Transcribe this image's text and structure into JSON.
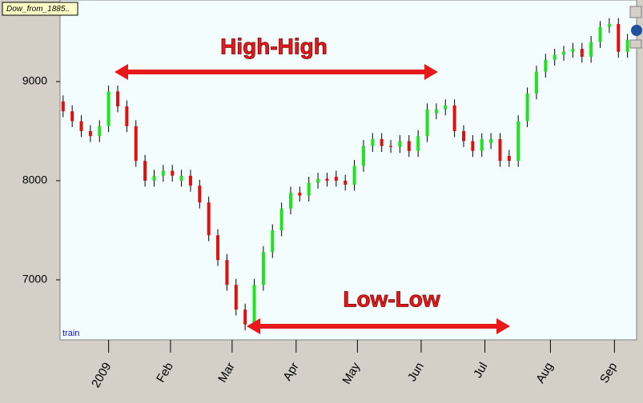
{
  "chart_data": {
    "type": "candlestick",
    "title": "Dow_from_1885..",
    "annotations": [
      "High-High",
      "Low-Low",
      "train"
    ],
    "x": [
      1,
      4,
      7,
      10,
      13,
      16,
      19,
      22,
      25,
      28,
      31,
      34,
      37,
      40,
      43,
      46,
      49,
      52,
      55,
      58,
      61,
      64,
      67,
      70,
      73,
      76,
      79,
      82,
      85,
      88,
      91,
      94,
      97,
      100,
      103,
      106,
      109,
      112,
      115,
      118,
      121,
      124,
      127,
      130,
      133,
      136,
      139,
      142,
      145,
      148,
      151,
      154,
      157,
      160,
      163,
      166,
      169,
      172,
      175,
      178,
      181,
      184,
      187
    ],
    "open": [
      8800,
      8700,
      8600,
      8500,
      8450,
      8550,
      8900,
      8750,
      8550,
      8200,
      8000,
      8050,
      8100,
      8000,
      8050,
      7950,
      7780,
      7450,
      7200,
      6950,
      6700,
      6550,
      6950,
      7280,
      7500,
      7720,
      7880,
      7850,
      7980,
      8020,
      8040,
      8000,
      7960,
      8150,
      8350,
      8420,
      8350,
      8340,
      8400,
      8300,
      8450,
      8680,
      8720,
      8760,
      8500,
      8400,
      8300,
      8380,
      8420,
      8250,
      8200,
      8600,
      8880,
      9100,
      9220,
      9270,
      9300,
      9330,
      9250,
      9400,
      9550,
      9580,
      9300
    ],
    "high": [
      8860,
      8760,
      8660,
      8560,
      8610,
      8960,
      8960,
      8810,
      8610,
      8260,
      8110,
      8160,
      8160,
      8110,
      8110,
      8010,
      7840,
      7510,
      7260,
      7010,
      6760,
      7010,
      7340,
      7560,
      7780,
      7940,
      7940,
      8040,
      8080,
      8080,
      8100,
      8060,
      8210,
      8410,
      8480,
      8480,
      8410,
      8460,
      8460,
      8510,
      8780,
      8780,
      8820,
      8820,
      8560,
      8460,
      8480,
      8480,
      8480,
      8310,
      8660,
      8940,
      9160,
      9280,
      9330,
      9360,
      9390,
      9390,
      9460,
      9610,
      9640,
      9640,
      9480
    ],
    "low": [
      8640,
      8540,
      8440,
      8390,
      8390,
      8490,
      8690,
      8490,
      8140,
      7940,
      7940,
      7990,
      7990,
      7940,
      7890,
      7720,
      7390,
      7140,
      6890,
      6640,
      6490,
      6490,
      6890,
      7220,
      7440,
      7660,
      7790,
      7790,
      7920,
      7940,
      7940,
      7900,
      7900,
      8090,
      8290,
      8290,
      8280,
      8280,
      8240,
      8240,
      8390,
      8620,
      8660,
      8440,
      8340,
      8240,
      8240,
      8320,
      8140,
      8140,
      8140,
      8540,
      8820,
      9040,
      9160,
      9210,
      9240,
      9190,
      9190,
      9340,
      9490,
      9240,
      9240
    ],
    "close": [
      8700,
      8600,
      8500,
      8450,
      8550,
      8900,
      8750,
      8550,
      8200,
      8000,
      8050,
      8100,
      8050,
      8050,
      7950,
      7780,
      7450,
      7200,
      6950,
      6700,
      6550,
      6950,
      7280,
      7500,
      7720,
      7880,
      7850,
      7980,
      8020,
      8000,
      8000,
      7960,
      8150,
      8350,
      8420,
      8350,
      8340,
      8400,
      8300,
      8450,
      8720,
      8720,
      8760,
      8500,
      8400,
      8300,
      8420,
      8420,
      8200,
      8200,
      8600,
      8880,
      9100,
      9220,
      9270,
      9300,
      9330,
      9250,
      9400,
      9550,
      9580,
      9300,
      9420
    ],
    "up_color": "#22e022",
    "down_color": "#e01010",
    "wick_color": "#000000",
    "xlim": [
      0,
      190
    ],
    "xticks": [
      {
        "value": 16,
        "label": "2009"
      },
      {
        "value": 36.4,
        "label": "Feb"
      },
      {
        "value": 56.7,
        "label": "Mar"
      },
      {
        "value": 77.8,
        "label": "Apr"
      },
      {
        "value": 98,
        "label": "May"
      },
      {
        "value": 119,
        "label": "Jun"
      },
      {
        "value": 140,
        "label": "Jul"
      },
      {
        "value": 161.6,
        "label": "Aug"
      },
      {
        "value": 182.7,
        "label": "Sep"
      }
    ],
    "ylim": [
      6395,
      9758
    ],
    "yticks": [
      7000,
      8000,
      9000
    ]
  }
}
